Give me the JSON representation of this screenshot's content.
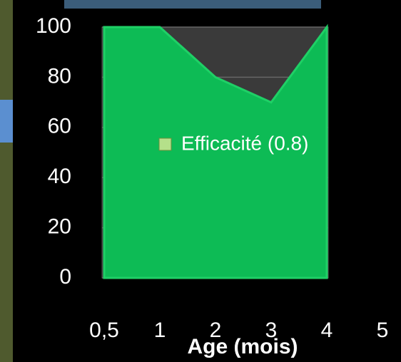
{
  "chart_data": {
    "type": "area",
    "x_label": "Age (mois)",
    "categories": [
      "0,5",
      "1",
      "2",
      "3",
      "4",
      "5"
    ],
    "series": [
      {
        "name": "Efficacité (0.8)",
        "color": "#0dbb55",
        "values": [
          100,
          100,
          80,
          70,
          100,
          null
        ]
      }
    ],
    "ylim": [
      0,
      100
    ],
    "yticks": [
      0,
      20,
      40,
      60,
      80,
      100
    ],
    "grid": true
  }
}
